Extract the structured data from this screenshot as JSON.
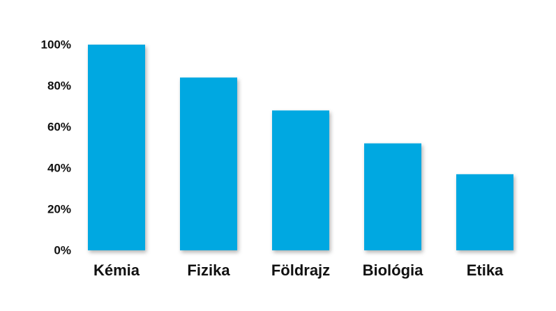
{
  "chart_data": {
    "type": "bar",
    "categories": [
      "Kémia",
      "Fizika",
      "Földrajz",
      "Biológia",
      "Etika"
    ],
    "values": [
      100,
      84,
      68,
      52,
      37
    ],
    "color": "#00a8e1",
    "ylim": [
      0,
      100
    ],
    "yticks": [
      {
        "value": 0,
        "label": "0%"
      },
      {
        "value": 20,
        "label": "20%"
      },
      {
        "value": 40,
        "label": "40%"
      },
      {
        "value": 60,
        "label": "60%"
      },
      {
        "value": 80,
        "label": "80%"
      },
      {
        "value": 100,
        "label": "100%"
      }
    ],
    "grid": true
  }
}
